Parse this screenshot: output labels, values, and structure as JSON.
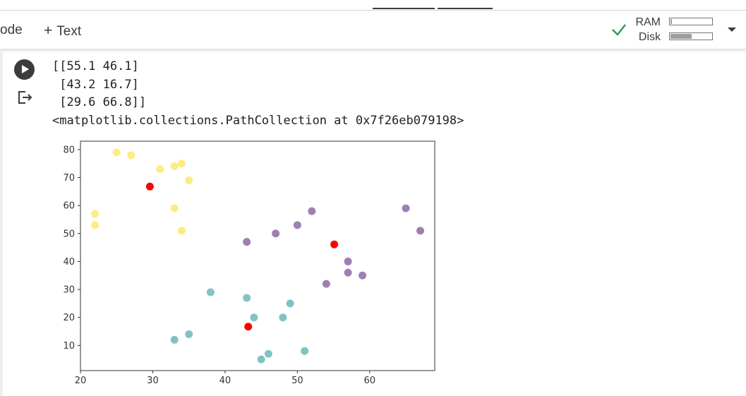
{
  "toolbar": {
    "code_label": "ode",
    "text_label": "Text",
    "ram_label": "RAM",
    "disk_label": "Disk",
    "ram_fraction": 0.03,
    "disk_fraction": 0.52,
    "colors": {
      "check": "#1e9e4a"
    }
  },
  "cell": {
    "output_lines": [
      "[[55.1 46.1]",
      " [43.2 16.7]",
      " [29.6 66.8]]",
      "<matplotlib.collections.PathCollection at 0x7f26eb079198>"
    ]
  },
  "chart_data": {
    "type": "scatter",
    "xlim": [
      20,
      69
    ],
    "ylim": [
      1,
      83
    ],
    "xticks": [
      20,
      30,
      40,
      50,
      60
    ],
    "yticks": [
      10,
      20,
      30,
      40,
      50,
      60,
      70,
      80
    ],
    "grid": false,
    "series": [
      {
        "color": "#fde96f",
        "points": [
          [
            25,
            79
          ],
          [
            27,
            78
          ],
          [
            31,
            73
          ],
          [
            33,
            74
          ],
          [
            34,
            75
          ],
          [
            35,
            69
          ],
          [
            22,
            57
          ],
          [
            22,
            53
          ],
          [
            33,
            59
          ],
          [
            34,
            51
          ]
        ]
      },
      {
        "color": "#8e6aa5",
        "points": [
          [
            43,
            47
          ],
          [
            47,
            50
          ],
          [
            50,
            53
          ],
          [
            52,
            58
          ],
          [
            57,
            40
          ],
          [
            57,
            36
          ],
          [
            59,
            35
          ],
          [
            54,
            32
          ],
          [
            65,
            59
          ],
          [
            67,
            51
          ]
        ]
      },
      {
        "color": "#6cb8b7",
        "points": [
          [
            38,
            29
          ],
          [
            43,
            27
          ],
          [
            44,
            20
          ],
          [
            49,
            25
          ],
          [
            48,
            20
          ],
          [
            33,
            12
          ],
          [
            35,
            14
          ],
          [
            45,
            5
          ],
          [
            46,
            7
          ],
          [
            51,
            8
          ]
        ]
      },
      {
        "color": "#ff0000",
        "points": [
          [
            55.1,
            46.1
          ],
          [
            43.2,
            16.7
          ],
          [
            29.6,
            66.8
          ]
        ]
      }
    ]
  }
}
